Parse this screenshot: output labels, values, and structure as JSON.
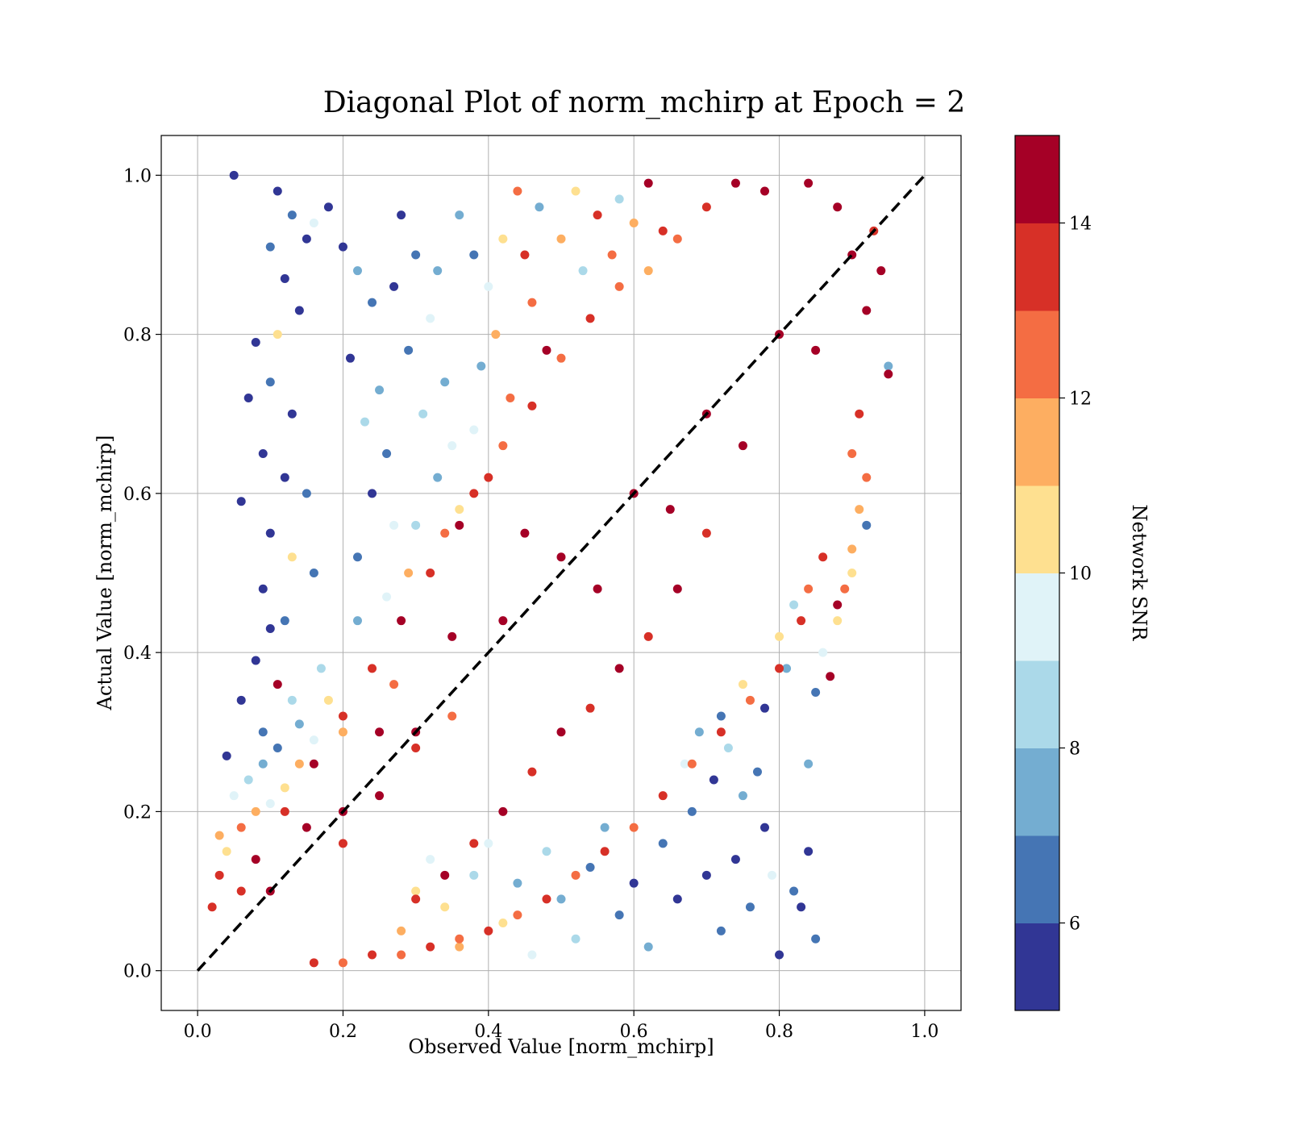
{
  "chart_data": {
    "type": "scatter",
    "title": "Diagonal Plot of norm_mchirp at Epoch = 2",
    "xlabel": "Observed Value [norm_mchirp]",
    "ylabel": "Actual Value [norm_mchirp]",
    "xlim": [
      -0.05,
      1.05
    ],
    "ylim": [
      -0.05,
      1.05
    ],
    "xticks": [
      0.0,
      0.2,
      0.4,
      0.6,
      0.8,
      1.0
    ],
    "xtick_labels": [
      "0.0",
      "0.2",
      "0.4",
      "0.6",
      "0.8",
      "1.0"
    ],
    "yticks": [
      0.0,
      0.2,
      0.4,
      0.6,
      0.8,
      1.0
    ],
    "ytick_labels": [
      "0.0",
      "0.2",
      "0.4",
      "0.6",
      "0.8",
      "1.0"
    ],
    "grid": true,
    "reference_line": {
      "x": [
        0.0,
        1.0
      ],
      "y": [
        0.0,
        1.0
      ],
      "style": "dashed",
      "color": "#000000"
    },
    "colorbar": {
      "label": "Network SNR",
      "range": [
        5,
        15
      ],
      "ticks": [
        6,
        8,
        10,
        12,
        14
      ],
      "tick_labels": [
        "6",
        "8",
        "10",
        "12",
        "14"
      ],
      "colors": [
        "#313695",
        "#4575b4",
        "#74add1",
        "#abd9e9",
        "#e0f3f8",
        "#fee090",
        "#fdae61",
        "#f46d43",
        "#d73027",
        "#a50026"
      ]
    },
    "series": [
      {
        "points": [
          [
            0.05,
            1.0,
            5.5
          ],
          [
            0.11,
            0.98,
            5.5
          ],
          [
            0.13,
            0.95,
            6.0
          ],
          [
            0.15,
            0.92,
            5.5
          ],
          [
            0.16,
            0.94,
            9.0
          ],
          [
            0.18,
            0.96,
            5.5
          ],
          [
            0.1,
            0.91,
            6.0
          ],
          [
            0.12,
            0.87,
            5.5
          ],
          [
            0.14,
            0.83,
            5.5
          ],
          [
            0.11,
            0.8,
            10.0
          ],
          [
            0.08,
            0.79,
            5.5
          ],
          [
            0.07,
            0.72,
            5.5
          ],
          [
            0.1,
            0.74,
            6.0
          ],
          [
            0.13,
            0.7,
            5.5
          ],
          [
            0.09,
            0.65,
            5.5
          ],
          [
            0.12,
            0.62,
            5.5
          ],
          [
            0.15,
            0.6,
            6.0
          ],
          [
            0.06,
            0.59,
            5.5
          ],
          [
            0.1,
            0.55,
            5.5
          ],
          [
            0.13,
            0.52,
            10.0
          ],
          [
            0.16,
            0.5,
            6.0
          ],
          [
            0.09,
            0.48,
            5.5
          ],
          [
            0.12,
            0.44,
            6.0
          ],
          [
            0.1,
            0.43,
            5.5
          ],
          [
            0.08,
            0.39,
            5.5
          ],
          [
            0.11,
            0.36,
            14.5
          ],
          [
            0.06,
            0.34,
            5.5
          ],
          [
            0.04,
            0.27,
            5.5
          ],
          [
            0.09,
            0.3,
            6.0
          ],
          [
            0.13,
            0.34,
            8.0
          ],
          [
            0.2,
            0.91,
            5.5
          ],
          [
            0.22,
            0.88,
            7.0
          ],
          [
            0.24,
            0.84,
            6.0
          ],
          [
            0.21,
            0.77,
            5.5
          ],
          [
            0.25,
            0.73,
            7.0
          ],
          [
            0.23,
            0.69,
            8.0
          ],
          [
            0.26,
            0.65,
            6.0
          ],
          [
            0.24,
            0.6,
            5.5
          ],
          [
            0.27,
            0.56,
            9.0
          ],
          [
            0.22,
            0.52,
            6.0
          ],
          [
            0.28,
            0.95,
            5.5
          ],
          [
            0.3,
            0.9,
            6.0
          ],
          [
            0.27,
            0.86,
            5.5
          ],
          [
            0.33,
            0.88,
            7.0
          ],
          [
            0.32,
            0.82,
            9.0
          ],
          [
            0.29,
            0.78,
            6.0
          ],
          [
            0.34,
            0.74,
            7.0
          ],
          [
            0.31,
            0.7,
            8.0
          ],
          [
            0.35,
            0.66,
            9.0
          ],
          [
            0.33,
            0.62,
            7.0
          ],
          [
            0.36,
            0.58,
            10.0
          ],
          [
            0.3,
            0.56,
            8.0
          ],
          [
            0.36,
            0.95,
            7.0
          ],
          [
            0.38,
            0.9,
            6.0
          ],
          [
            0.4,
            0.86,
            9.0
          ],
          [
            0.42,
            0.92,
            10.0
          ],
          [
            0.41,
            0.8,
            11.0
          ],
          [
            0.39,
            0.76,
            7.0
          ],
          [
            0.43,
            0.72,
            12.0
          ],
          [
            0.38,
            0.68,
            9.0
          ],
          [
            0.44,
            0.98,
            12.0
          ],
          [
            0.45,
            0.9,
            13.0
          ],
          [
            0.47,
            0.96,
            7.0
          ],
          [
            0.46,
            0.84,
            12.5
          ],
          [
            0.48,
            0.78,
            14.5
          ],
          [
            0.5,
            0.92,
            11.0
          ],
          [
            0.52,
            0.98,
            10.0
          ],
          [
            0.53,
            0.88,
            8.0
          ],
          [
            0.55,
            0.95,
            13.0
          ],
          [
            0.58,
            0.97,
            8.0
          ],
          [
            0.6,
            0.94,
            11.0
          ],
          [
            0.62,
            0.99,
            14.5
          ],
          [
            0.57,
            0.9,
            12.0
          ],
          [
            0.64,
            0.93,
            13.0
          ],
          [
            0.35,
            0.32,
            12.0
          ],
          [
            0.3,
            0.28,
            13.0
          ],
          [
            0.25,
            0.22,
            14.0
          ],
          [
            0.2,
            0.16,
            13.5
          ],
          [
            0.27,
            0.36,
            12.5
          ],
          [
            0.2,
            0.3,
            11.0
          ],
          [
            0.18,
            0.34,
            10.0
          ],
          [
            0.16,
            0.29,
            9.0
          ],
          [
            0.14,
            0.26,
            11.0
          ],
          [
            0.12,
            0.23,
            10.5
          ],
          [
            0.1,
            0.21,
            9.0
          ],
          [
            0.08,
            0.2,
            11.5
          ],
          [
            0.06,
            0.18,
            12.0
          ],
          [
            0.04,
            0.15,
            10.0
          ],
          [
            0.03,
            0.12,
            13.0
          ],
          [
            0.02,
            0.08,
            13.5
          ],
          [
            0.07,
            0.24,
            8.0
          ],
          [
            0.09,
            0.26,
            7.0
          ],
          [
            0.05,
            0.22,
            9.5
          ],
          [
            0.03,
            0.17,
            11.0
          ],
          [
            0.11,
            0.28,
            6.0
          ],
          [
            0.14,
            0.31,
            7.5
          ],
          [
            0.17,
            0.38,
            8.5
          ],
          [
            0.22,
            0.44,
            7.0
          ],
          [
            0.26,
            0.47,
            9.5
          ],
          [
            0.29,
            0.5,
            11.5
          ],
          [
            0.34,
            0.55,
            12.5
          ],
          [
            0.38,
            0.6,
            13.0
          ],
          [
            0.42,
            0.66,
            12.0
          ],
          [
            0.46,
            0.71,
            13.5
          ],
          [
            0.5,
            0.77,
            12.5
          ],
          [
            0.54,
            0.82,
            13.0
          ],
          [
            0.58,
            0.86,
            12.0
          ],
          [
            0.62,
            0.88,
            11.0
          ],
          [
            0.66,
            0.92,
            12.5
          ],
          [
            0.7,
            0.96,
            13.0
          ],
          [
            0.74,
            0.99,
            14.5
          ],
          [
            0.3,
            0.1,
            10.5
          ],
          [
            0.28,
            0.05,
            11.0
          ],
          [
            0.32,
            0.14,
            9.5
          ],
          [
            0.34,
            0.08,
            10.0
          ],
          [
            0.36,
            0.03,
            11.5
          ],
          [
            0.38,
            0.12,
            8.5
          ],
          [
            0.4,
            0.16,
            9.0
          ],
          [
            0.42,
            0.06,
            10.0
          ],
          [
            0.44,
            0.11,
            7.5
          ],
          [
            0.46,
            0.02,
            9.5
          ],
          [
            0.48,
            0.15,
            8.0
          ],
          [
            0.5,
            0.09,
            7.0
          ],
          [
            0.52,
            0.04,
            8.5
          ],
          [
            0.54,
            0.13,
            6.5
          ],
          [
            0.56,
            0.18,
            7.5
          ],
          [
            0.58,
            0.07,
            6.0
          ],
          [
            0.6,
            0.11,
            5.5
          ],
          [
            0.62,
            0.03,
            7.0
          ],
          [
            0.64,
            0.16,
            6.0
          ],
          [
            0.66,
            0.09,
            5.5
          ],
          [
            0.68,
            0.2,
            6.5
          ],
          [
            0.7,
            0.12,
            5.5
          ],
          [
            0.72,
            0.05,
            6.0
          ],
          [
            0.74,
            0.14,
            5.5
          ],
          [
            0.76,
            0.08,
            6.0
          ],
          [
            0.78,
            0.18,
            5.5
          ],
          [
            0.8,
            0.02,
            5.5
          ],
          [
            0.82,
            0.1,
            6.0
          ],
          [
            0.84,
            0.15,
            5.5
          ],
          [
            0.85,
            0.04,
            6.0
          ],
          [
            0.83,
            0.08,
            5.5
          ],
          [
            0.79,
            0.12,
            9.0
          ],
          [
            0.75,
            0.22,
            7.0
          ],
          [
            0.77,
            0.25,
            6.0
          ],
          [
            0.73,
            0.28,
            8.0
          ],
          [
            0.71,
            0.24,
            5.5
          ],
          [
            0.69,
            0.3,
            7.5
          ],
          [
            0.67,
            0.26,
            9.0
          ],
          [
            0.72,
            0.32,
            6.5
          ],
          [
            0.75,
            0.36,
            10.0
          ],
          [
            0.78,
            0.33,
            5.5
          ],
          [
            0.81,
            0.38,
            7.0
          ],
          [
            0.84,
            0.26,
            7.5
          ],
          [
            0.85,
            0.35,
            6.0
          ],
          [
            0.8,
            0.42,
            10.5
          ],
          [
            0.82,
            0.46,
            8.5
          ],
          [
            0.86,
            0.4,
            9.0
          ],
          [
            0.88,
            0.44,
            10.0
          ],
          [
            0.89,
            0.48,
            12.0
          ],
          [
            0.9,
            0.53,
            11.0
          ],
          [
            0.91,
            0.58,
            11.5
          ],
          [
            0.92,
            0.62,
            12.0
          ],
          [
            0.92,
            0.56,
            6.0
          ],
          [
            0.87,
            0.37,
            14.0
          ],
          [
            0.88,
            0.46,
            14.5
          ],
          [
            0.9,
            0.5,
            10.5
          ],
          [
            0.94,
            0.88,
            14.5
          ],
          [
            0.95,
            0.76,
            7.5
          ],
          [
            0.95,
            0.75,
            14.5
          ],
          [
            0.93,
            0.93,
            13.0
          ],
          [
            0.92,
            0.83,
            14.5
          ],
          [
            0.91,
            0.7,
            13.5
          ],
          [
            0.9,
            0.65,
            12.5
          ],
          [
            0.86,
            0.52,
            13.5
          ],
          [
            0.84,
            0.48,
            12.0
          ],
          [
            0.83,
            0.44,
            13.0
          ],
          [
            0.8,
            0.38,
            13.5
          ],
          [
            0.76,
            0.34,
            12.5
          ],
          [
            0.72,
            0.3,
            13.0
          ],
          [
            0.68,
            0.26,
            12.0
          ],
          [
            0.64,
            0.22,
            13.0
          ],
          [
            0.6,
            0.18,
            12.5
          ],
          [
            0.56,
            0.15,
            13.0
          ],
          [
            0.52,
            0.12,
            12.5
          ],
          [
            0.48,
            0.09,
            13.5
          ],
          [
            0.44,
            0.07,
            12.0
          ],
          [
            0.4,
            0.05,
            13.0
          ],
          [
            0.36,
            0.04,
            12.5
          ],
          [
            0.32,
            0.03,
            13.0
          ],
          [
            0.28,
            0.02,
            12.0
          ],
          [
            0.24,
            0.02,
            13.5
          ],
          [
            0.2,
            0.01,
            12.5
          ],
          [
            0.16,
            0.01,
            13.0
          ],
          [
            0.42,
            0.44,
            14.5
          ],
          [
            0.5,
            0.52,
            14.5
          ],
          [
            0.6,
            0.6,
            14.5
          ],
          [
            0.7,
            0.7,
            14.5
          ],
          [
            0.8,
            0.8,
            14.5
          ],
          [
            0.3,
            0.3,
            14.5
          ],
          [
            0.2,
            0.2,
            14.5
          ],
          [
            0.1,
            0.1,
            14.5
          ],
          [
            0.55,
            0.48,
            14.5
          ],
          [
            0.65,
            0.58,
            14.5
          ],
          [
            0.75,
            0.66,
            14.5
          ],
          [
            0.85,
            0.78,
            14.5
          ],
          [
            0.45,
            0.55,
            14.5
          ],
          [
            0.35,
            0.42,
            14.5
          ],
          [
            0.25,
            0.3,
            14.5
          ],
          [
            0.15,
            0.18,
            14.5
          ],
          [
            0.88,
            0.96,
            14.5
          ],
          [
            0.84,
            0.99,
            14.5
          ],
          [
            0.78,
            0.98,
            14.5
          ],
          [
            0.9,
            0.9,
            14.5
          ],
          [
            0.7,
            0.55,
            13.5
          ],
          [
            0.66,
            0.48,
            14.0
          ],
          [
            0.62,
            0.42,
            13.0
          ],
          [
            0.58,
            0.38,
            14.0
          ],
          [
            0.54,
            0.33,
            13.5
          ],
          [
            0.5,
            0.3,
            14.0
          ],
          [
            0.46,
            0.25,
            13.0
          ],
          [
            0.42,
            0.2,
            14.0
          ],
          [
            0.38,
            0.16,
            13.5
          ],
          [
            0.34,
            0.12,
            14.0
          ],
          [
            0.3,
            0.09,
            13.0
          ],
          [
            0.4,
            0.62,
            13.5
          ],
          [
            0.36,
            0.56,
            14.0
          ],
          [
            0.32,
            0.5,
            13.0
          ],
          [
            0.28,
            0.44,
            14.0
          ],
          [
            0.24,
            0.38,
            13.5
          ],
          [
            0.2,
            0.32,
            13.0
          ],
          [
            0.16,
            0.26,
            14.0
          ],
          [
            0.12,
            0.2,
            13.5
          ],
          [
            0.08,
            0.14,
            14.0
          ],
          [
            0.06,
            0.1,
            13.0
          ]
        ]
      }
    ]
  }
}
